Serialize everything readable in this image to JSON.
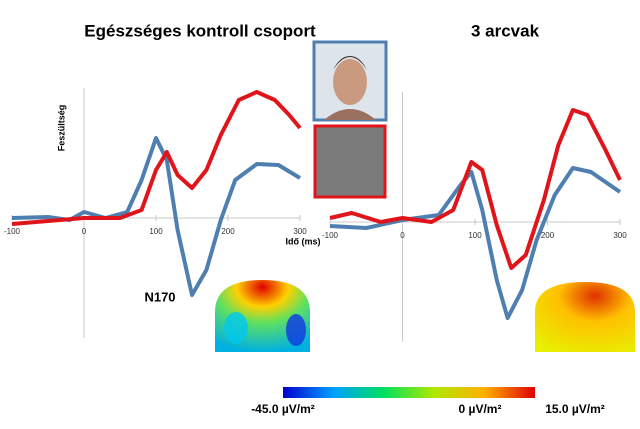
{
  "chart_data": [
    {
      "type": "line",
      "title": "Egészséges kontroll csoport",
      "ylabel": "Feszültség",
      "xlabel": "Idő (ms)",
      "annotations": [
        "N170"
      ],
      "xlim": [
        -100,
        300
      ],
      "xticks": [
        -100,
        0,
        100,
        200,
        300
      ],
      "ylim": [
        -12,
        16
      ],
      "series": [
        {
          "color": "#4f7fb0",
          "x": [
            -100,
            -50,
            -20,
            0,
            30,
            60,
            80,
            100,
            115,
            130,
            150,
            170,
            190,
            210,
            240,
            270,
            300
          ],
          "values": [
            0,
            0.1,
            -0.2,
            0.6,
            0,
            0.6,
            3.8,
            8,
            5.8,
            -1.2,
            -7.7,
            -5.2,
            -0.2,
            3.8,
            5.4,
            5.3,
            4
          ]
        },
        {
          "color": "#e0151b",
          "x": [
            -100,
            -50,
            0,
            50,
            80,
            100,
            115,
            130,
            150,
            170,
            190,
            215,
            240,
            265,
            285,
            300
          ],
          "values": [
            -0.6,
            -0.3,
            0,
            0,
            0.8,
            4.8,
            6.6,
            4.3,
            3,
            4.8,
            8.3,
            11.8,
            12.6,
            11.8,
            10.3,
            9
          ]
        }
      ]
    },
    {
      "type": "line",
      "title": "3 arcvak",
      "xlim": [
        -100,
        300
      ],
      "xticks": [
        -100,
        0,
        100,
        200,
        300
      ],
      "ylim": [
        -12,
        16
      ],
      "series": [
        {
          "color": "#4f7fb0",
          "x": [
            -100,
            -50,
            0,
            50,
            80,
            95,
            110,
            130,
            145,
            165,
            185,
            210,
            235,
            260,
            300
          ],
          "values": [
            -0.4,
            -0.6,
            0.2,
            0.7,
            3.7,
            5,
            1.2,
            -5.8,
            -9.6,
            -6.8,
            -1.8,
            2.7,
            5.4,
            5,
            3
          ]
        },
        {
          "color": "#e0151b",
          "x": [
            -100,
            -70,
            -30,
            0,
            40,
            70,
            95,
            110,
            130,
            150,
            170,
            195,
            215,
            235,
            255,
            280,
            300
          ],
          "values": [
            0.4,
            0.9,
            0,
            0.4,
            0,
            1.2,
            6,
            5.2,
            -0.3,
            -4.6,
            -3.3,
            2.2,
            7.7,
            11.2,
            10.7,
            7.2,
            4.2
          ]
        }
      ]
    }
  ],
  "colorbar": {
    "labels": [
      "-45.0 µV/m²",
      "0 µV/m²",
      "15.0 µV/m²"
    ]
  }
}
